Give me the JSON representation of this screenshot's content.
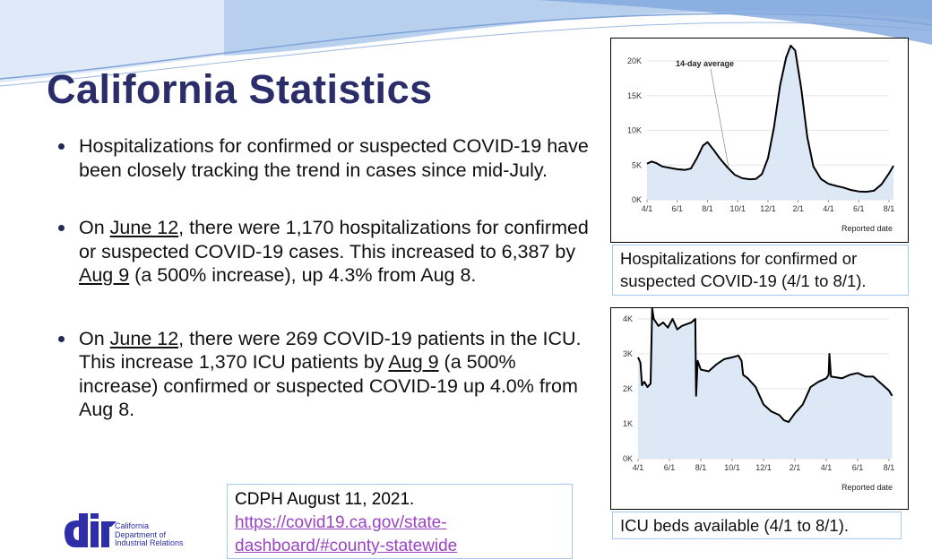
{
  "slide": {
    "title": "California Statistics",
    "bullets": [
      {
        "text": "Hospitalizations for confirmed or suspected COVID-19 have been closely tracking the trend in cases since mid-July."
      },
      {
        "pre": "On ",
        "u1": "June 12",
        "mid": ", there were 1,170 hospitalizations for confirmed or suspected COVID-19 cases. This increased to 6,387 by ",
        "u2": "Aug 9",
        "post": " (a 500% increase), up 4.3% from Aug 8."
      },
      {
        "pre": "On ",
        "u1": "June 12",
        "mid": ", there were 269 COVID-19 patients in the ICU. This increase 1,370 ICU patients by ",
        "u2": "Aug 9",
        "post": " (a 500% increase) confirmed or suspected COVID-19 up 4.0% from Aug 8."
      }
    ],
    "source": {
      "text": "CDPH August 11, 2021.",
      "link": "https://covid19.ca.gov/state-dashboard/#county-statewide"
    },
    "logo": {
      "mark": "dir",
      "text": [
        "California",
        "Department of",
        "Industrial Relations"
      ]
    },
    "captions": [
      "Hospitalizations for confirmed or suspected COVID-19 (4/1 to 8/1).",
      "ICU beds available (4/1 to 8/1)."
    ]
  },
  "colors": {
    "title": "#2b2d6b",
    "fill": "#dce8f5",
    "line": "#000000",
    "link": "#9a44c4"
  },
  "chart_data": [
    {
      "type": "area",
      "title": "Hospitalizations",
      "xlabel": "Reported date",
      "ylabel": "",
      "annotation": "14-day average",
      "x_ticks": [
        "4/1",
        "6/1",
        "8/1",
        "10/1",
        "12/1",
        "2/1",
        "4/1",
        "6/1",
        "8/1"
      ],
      "y_ticks": [
        "0K",
        "5K",
        "10K",
        "15K",
        "20K"
      ],
      "ylim": [
        0,
        23000
      ],
      "x_unit": "months since 4/1/2020",
      "x": [
        0,
        0.3,
        0.6,
        1,
        1.5,
        2,
        2.5,
        2.9,
        3.3,
        3.7,
        4,
        4.4,
        4.8,
        5.3,
        5.8,
        6.3,
        6.8,
        7.2,
        7.6,
        8,
        8.4,
        8.8,
        9.2,
        9.5,
        9.8,
        10.2,
        10.6,
        11,
        11.5,
        12,
        12.5,
        13,
        13.5,
        14,
        14.5,
        15,
        15.5,
        16,
        16.3
      ],
      "values": [
        5200,
        5500,
        5300,
        4800,
        4600,
        4400,
        4300,
        4500,
        6000,
        7800,
        8300,
        7200,
        6000,
        4700,
        3600,
        3100,
        2950,
        3000,
        3700,
        6000,
        10500,
        16500,
        20500,
        22200,
        21500,
        16000,
        9000,
        4800,
        3000,
        2300,
        2000,
        1750,
        1400,
        1200,
        1150,
        1300,
        2200,
        3800,
        4900
      ]
    },
    {
      "type": "area",
      "title": "ICU beds available",
      "xlabel": "Reported date",
      "ylabel": "",
      "x_ticks": [
        "4/1",
        "6/1",
        "8/1",
        "10/1",
        "12/1",
        "2/1",
        "4/1",
        "6/1",
        "8/1"
      ],
      "y_ticks": [
        "0K",
        "1K",
        "2K",
        "3K",
        "4K"
      ],
      "ylim": [
        0,
        4300
      ],
      "x_unit": "months since 4/1/2020",
      "x": [
        0,
        0.15,
        0.25,
        0.4,
        0.6,
        0.8,
        0.9,
        1.0,
        1.3,
        1.6,
        1.9,
        2.2,
        2.5,
        2.8,
        3.1,
        3.4,
        3.65,
        3.7,
        3.8,
        4,
        4.5,
        5,
        5.5,
        6,
        6.4,
        6.6,
        6.7,
        7,
        7.5,
        8,
        8.5,
        9,
        9.3,
        9.6,
        10,
        10.5,
        11,
        11.5,
        12,
        12.15,
        12.2,
        12.3,
        13,
        13.5,
        14,
        14.5,
        15,
        15.5,
        16,
        16.2
      ],
      "values": [
        2900,
        2750,
        2100,
        2200,
        2050,
        2150,
        4300,
        4000,
        3800,
        3900,
        3750,
        4000,
        3700,
        3800,
        3850,
        3900,
        4000,
        1800,
        2800,
        2550,
        2500,
        2700,
        2850,
        2900,
        2950,
        2800,
        2400,
        2300,
        2050,
        1550,
        1350,
        1250,
        1100,
        1050,
        1300,
        1550,
        2050,
        2200,
        2300,
        2400,
        3000,
        2350,
        2300,
        2400,
        2450,
        2350,
        2350,
        2150,
        1950,
        1800
      ]
    }
  ]
}
